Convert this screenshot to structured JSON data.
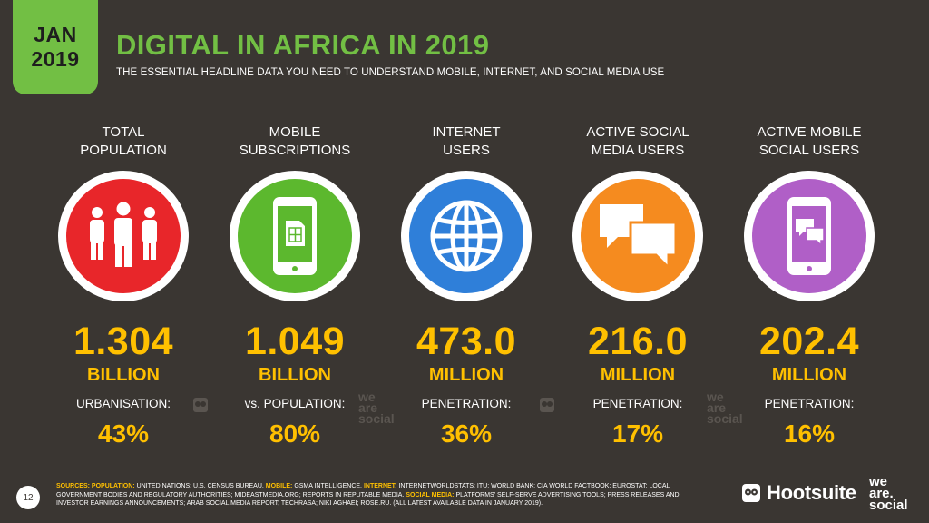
{
  "header": {
    "badge_month": "JAN",
    "badge_year": "2019",
    "title": "DIGITAL IN AFRICA IN 2019",
    "subtitle": "THE ESSENTIAL HEADLINE DATA YOU NEED TO UNDERSTAND MOBILE, INTERNET, AND SOCIAL MEDIA USE"
  },
  "stats": [
    {
      "label_line1": "TOTAL",
      "label_line2": "POPULATION",
      "icon": "people-icon",
      "color": "#e8262a",
      "value": "1.304",
      "unit": "BILLION",
      "sub_label": "URBANISATION:",
      "sub_value": "43%"
    },
    {
      "label_line1": "MOBILE",
      "label_line2": "SUBSCRIPTIONS",
      "icon": "mobile-sim-icon",
      "color": "#5cb82e",
      "value": "1.049",
      "unit": "BILLION",
      "sub_label": "vs. POPULATION:",
      "sub_value": "80%"
    },
    {
      "label_line1": "INTERNET",
      "label_line2": "USERS",
      "icon": "globe-icon",
      "color": "#2f7fd9",
      "value": "473.0",
      "unit": "MILLION",
      "sub_label": "PENETRATION:",
      "sub_value": "36%"
    },
    {
      "label_line1": "ACTIVE SOCIAL",
      "label_line2": "MEDIA USERS",
      "icon": "chat-bubbles-icon",
      "color": "#f58b1f",
      "value": "216.0",
      "unit": "MILLION",
      "sub_label": "PENETRATION:",
      "sub_value": "17%"
    },
    {
      "label_line1": "ACTIVE MOBILE",
      "label_line2": "SOCIAL USERS",
      "icon": "mobile-chat-icon",
      "color": "#b05fc7",
      "value": "202.4",
      "unit": "MILLION",
      "sub_label": "PENETRATION:",
      "sub_value": "16%"
    }
  ],
  "watermark": {
    "line1": "we",
    "line2": "are",
    "line3": "social"
  },
  "footer": {
    "page_number": "12",
    "sources_label": "SOURCES:",
    "population_label": "POPULATION:",
    "population_text": "UNITED NATIONS; U.S. CENSUS BUREAU.",
    "mobile_label": "MOBILE:",
    "mobile_text": "GSMA INTELLIGENCE.",
    "internet_label": "INTERNET:",
    "internet_text": "INTERNETWORLDSTATS; ITU; WORLD BANK; CIA WORLD FACTBOOK; EUROSTAT; LOCAL GOVERNMENT BODIES AND REGULATORY AUTHORITIES; MIDEASTMEDIA.ORG; REPORTS IN REPUTABLE MEDIA.",
    "social_label": "SOCIAL MEDIA:",
    "social_text": "PLATFORMS' SELF-SERVE ADVERTISING TOOLS; PRESS RELEASES AND INVESTOR EARNINGS ANNOUNCEMENTS; ARAB SOCIAL MEDIA REPORT; TECHRASA; NIKI AGHAEI; ROSE.RU. (ALL LATEST AVAILABLE DATA IN JANUARY 2019).",
    "hootsuite": "Hootsuite",
    "was_line1": "we",
    "was_line2": "are.",
    "was_line3": "social"
  }
}
